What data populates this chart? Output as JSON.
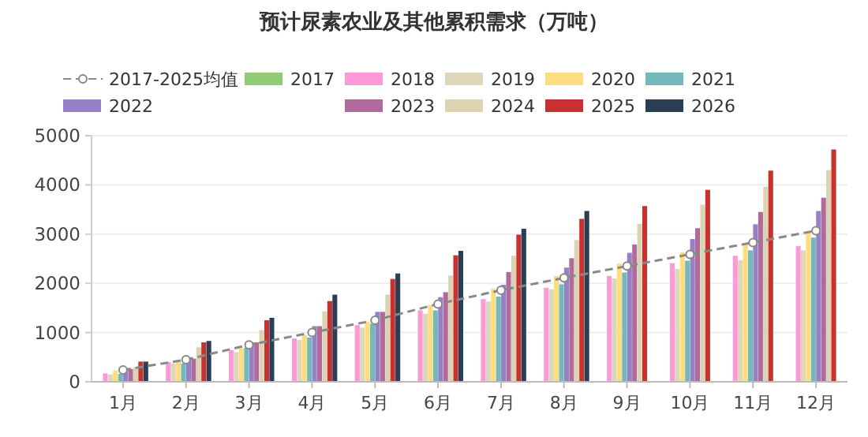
{
  "chart_data": {
    "type": "bar",
    "title": "预计尿素农业及其他累积需求（万吨）",
    "categories": [
      "1月",
      "2月",
      "3月",
      "4月",
      "5月",
      "6月",
      "7月",
      "8月",
      "9月",
      "10月",
      "11月",
      "12月"
    ],
    "ylim": [
      0,
      5000
    ],
    "yticks": [
      0,
      1000,
      2000,
      3000,
      4000,
      5000
    ],
    "grid": "y",
    "legend": "top",
    "series": [
      {
        "name": "2017-2025均值",
        "type": "line",
        "color": "#888888",
        "marker": "circle",
        "line_style": "dashed",
        "values": [
          240,
          450,
          750,
          1000,
          1250,
          1580,
          1860,
          2110,
          2350,
          2590,
          2830,
          3070
        ]
      },
      {
        "name": "2017",
        "color": "#91cc75",
        "values": [
          null,
          null,
          null,
          null,
          null,
          null,
          null,
          null,
          null,
          null,
          null,
          null
        ]
      },
      {
        "name": "2018",
        "color": "#fc9ad8",
        "values": [
          170,
          400,
          640,
          880,
          1150,
          1450,
          1680,
          1910,
          2150,
          2410,
          2560,
          2760
        ]
      },
      {
        "name": "2019",
        "color": "#ddd6bb",
        "values": [
          150,
          370,
          600,
          850,
          1100,
          1380,
          1630,
          1880,
          2100,
          2290,
          2470,
          2670
        ]
      },
      {
        "name": "2020",
        "color": "#fddd80",
        "values": [
          230,
          400,
          680,
          950,
          1220,
          1560,
          1890,
          2150,
          2400,
          2630,
          2810,
          3030
        ]
      },
      {
        "name": "2021",
        "color": "#73b9bc",
        "values": [
          160,
          370,
          690,
          900,
          1180,
          1450,
          1730,
          1980,
          2220,
          2460,
          2670,
          2930
        ]
      },
      {
        "name": "2022",
        "color": "#9581c4",
        "values": [
          260,
          480,
          800,
          1130,
          1420,
          1720,
          1970,
          2320,
          2620,
          2900,
          3200,
          3470
        ]
      },
      {
        "name": "2023",
        "color": "#b06a9b",
        "values": [
          260,
          470,
          800,
          1130,
          1420,
          1820,
          2230,
          2510,
          2790,
          3120,
          3450,
          3740
        ]
      },
      {
        "name": "2024",
        "color": "#dcd3b3",
        "values": [
          300,
          700,
          1050,
          1430,
          1770,
          2160,
          2560,
          2880,
          3210,
          3600,
          3960,
          4300
        ]
      },
      {
        "name": "2025",
        "color": "#c8312f",
        "values": [
          410,
          800,
          1250,
          1640,
          2090,
          2570,
          2990,
          3310,
          3570,
          3900,
          4290,
          4720
        ]
      },
      {
        "name": "2026",
        "color": "#2a3f54",
        "values": [
          410,
          830,
          1300,
          1770,
          2200,
          2660,
          3110,
          3470,
          null,
          null,
          null,
          null
        ]
      }
    ]
  }
}
